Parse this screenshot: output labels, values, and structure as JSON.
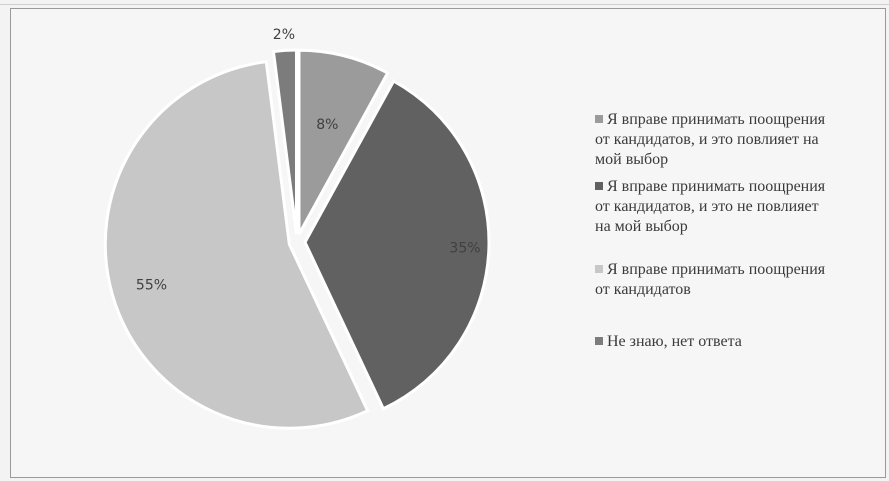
{
  "chart_data": {
    "type": "pie",
    "title": "",
    "categories": [
      "Я вправе принимать поощрения от кандидатов, и это повлияет на мой выбор",
      "Я вправе принимать поощрения от кандидатов, и это не повлияет на мой выбор",
      "Я вправе принимать поощрения от кандидатов",
      "Не знаю, нет ответа"
    ],
    "values": [
      8,
      35,
      55,
      2
    ],
    "labels": [
      "8%",
      "35%",
      "55%",
      "2%"
    ],
    "colors": [
      "#9b9b9b",
      "#616161",
      "#c7c7c7",
      "#7c7c7c"
    ],
    "legend_position": "right"
  },
  "legend": {
    "items": [
      {
        "lines": [
          "Я вправе принимать поощрения",
          "от кандидатов, и это повлияет на",
          "мой выбор"
        ]
      },
      {
        "lines": [
          "Я вправе принимать поощрения",
          "от кандидатов, и это не повлияет",
          "на мой выбор"
        ]
      },
      {
        "lines": [
          "Я вправе принимать поощрения",
          "от кандидатов"
        ]
      },
      {
        "lines": [
          "Не знаю, нет ответа"
        ]
      }
    ]
  }
}
